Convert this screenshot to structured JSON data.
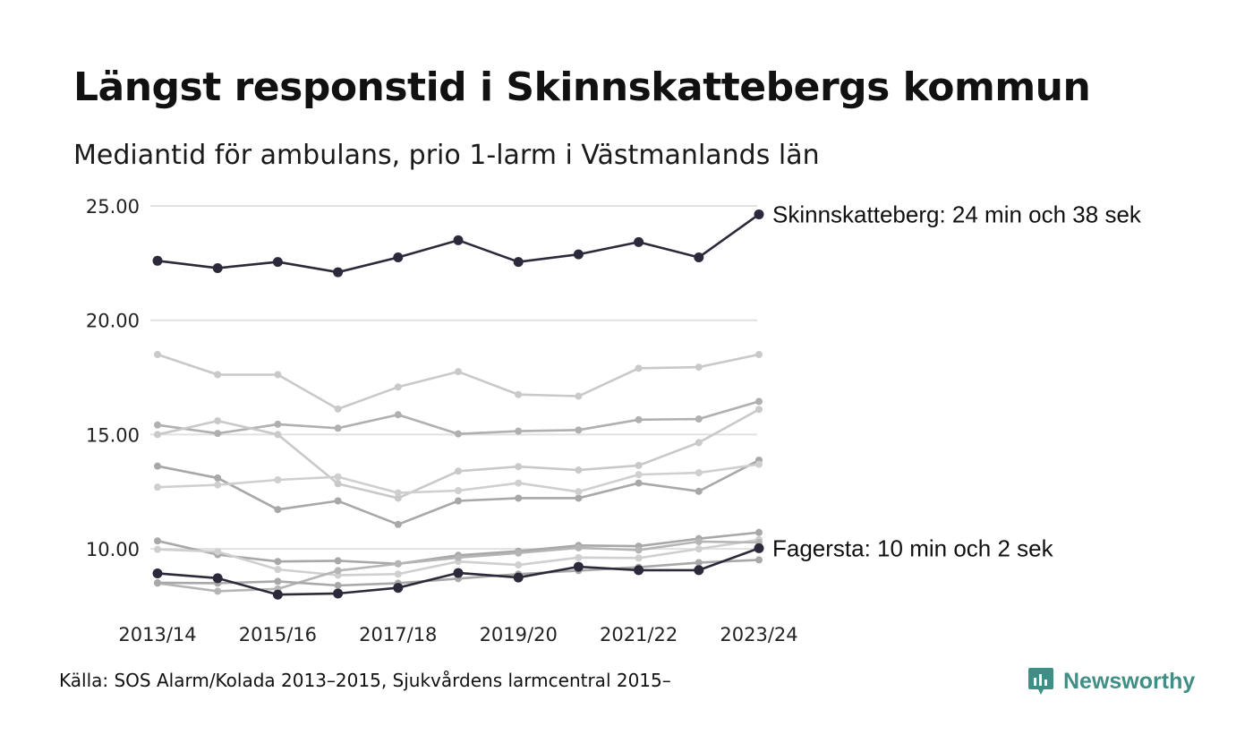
{
  "title": "Längst responstid i Skinnskattebergs kommun",
  "subtitle": "Mediantid för ambulans, prio 1-larm i Västmanlands län",
  "source": "Källa: SOS Alarm/Kolada 2013–2015, Sjukvårdens larmcentral 2015–",
  "brand": "Newsworthy",
  "colors": {
    "highlight": "#2b2a3a",
    "background_lines": [
      "#c9c9c9",
      "#b0b0b0",
      "#c9c9c9",
      "#a8a8a8",
      "#cfcfcf",
      "#a8a8a8",
      "#cfcfcf",
      "#b5b5b5",
      "#a8a8a8"
    ],
    "grid": "#e1e1e1",
    "brand": "#3f8f86"
  },
  "chart_data": {
    "type": "line",
    "title": "Längst responstid i Skinnskattebergs kommun",
    "subtitle": "Mediantid för ambulans, prio 1-larm i Västmanlands län",
    "x": [
      "2013/14",
      "2014/15",
      "2015/16",
      "2016/17",
      "2017/18",
      "2018/19",
      "2019/20",
      "2020/21",
      "2021/22",
      "2022/23",
      "2023/24"
    ],
    "x_tick_labels": [
      "2013/14",
      "2015/16",
      "2017/18",
      "2019/20",
      "2021/22",
      "2023/24"
    ],
    "y_ticks": [
      "10.00",
      "15.00",
      "20.00",
      "25.00"
    ],
    "ylim": [
      7.5,
      25
    ],
    "grid": true,
    "series": [
      {
        "values": [
          18.5,
          17.62,
          17.62,
          16.12,
          17.08,
          17.75,
          16.75,
          16.68,
          17.9,
          17.95,
          18.5
        ],
        "highlight": false
      },
      {
        "values": [
          15.42,
          15.05,
          15.45,
          15.28,
          15.87,
          15.03,
          15.15,
          15.2,
          15.65,
          15.68,
          16.45
        ],
        "highlight": false
      },
      {
        "values": [
          15.0,
          15.6,
          15.0,
          12.85,
          12.22,
          13.4,
          13.6,
          13.45,
          13.65,
          14.65,
          16.1
        ],
        "highlight": false
      },
      {
        "values": [
          13.62,
          13.1,
          11.72,
          12.1,
          11.07,
          12.1,
          12.22,
          12.22,
          12.88,
          12.52,
          13.88
        ],
        "highlight": false
      },
      {
        "values": [
          12.7,
          12.8,
          13.02,
          13.15,
          12.45,
          12.55,
          12.88,
          12.5,
          13.25,
          13.33,
          13.7
        ],
        "highlight": false
      },
      {
        "values": [
          10.35,
          9.75,
          9.45,
          9.48,
          9.35,
          9.72,
          9.9,
          10.15,
          10.12,
          10.45,
          10.72
        ],
        "highlight": false
      },
      {
        "values": [
          9.98,
          9.88,
          9.1,
          8.85,
          8.9,
          9.45,
          9.3,
          9.62,
          9.6,
          10.0,
          10.4
        ],
        "highlight": false
      },
      {
        "values": [
          8.5,
          8.15,
          8.25,
          9.05,
          9.35,
          9.62,
          9.82,
          10.05,
          9.95,
          10.32,
          10.28
        ],
        "highlight": false
      },
      {
        "values": [
          8.52,
          8.5,
          8.58,
          8.4,
          8.5,
          8.7,
          8.9,
          9.05,
          9.2,
          9.4,
          9.52
        ],
        "highlight": false
      },
      {
        "name": "Skinnskatteberg",
        "label": "Skinnskatteberg: 24 min och 38 sek",
        "values": [
          22.6,
          22.28,
          22.55,
          22.1,
          22.75,
          23.5,
          22.55,
          22.88,
          23.42,
          22.75,
          24.63
        ],
        "highlight": true
      },
      {
        "name": "Fagersta",
        "label": "Fagersta: 10 min och 2 sek",
        "values": [
          8.93,
          8.72,
          8.0,
          8.05,
          8.3,
          8.95,
          8.75,
          9.22,
          9.07,
          9.07,
          10.03
        ],
        "highlight": true
      }
    ]
  }
}
